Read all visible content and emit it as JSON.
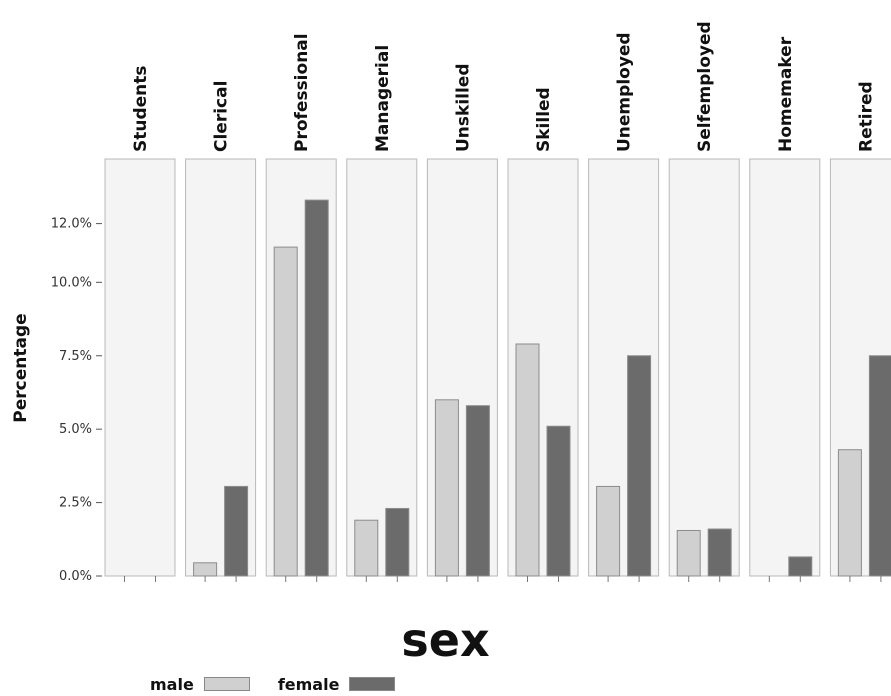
{
  "chart_data": {
    "type": "bar",
    "ylabel": "Percentage",
    "xlabel": "sex",
    "ylim": [
      0,
      14.2
    ],
    "yticks": [
      0,
      2.5,
      5.0,
      7.5,
      10.0,
      12.0
    ],
    "ytick_labels": [
      "0.0%",
      "2.5%",
      "5.0%",
      "7.5%",
      "10.0%",
      "12.0%"
    ],
    "panels": [
      "Students",
      "Clerical",
      "Professional",
      "Managerial",
      "Unskilled",
      "Skilled",
      "Unemployed",
      "Selfemployed",
      "Homemaker",
      "Retired"
    ],
    "series": [
      {
        "name": "male",
        "color": "#d0d0d0",
        "values": [
          0,
          0.45,
          11.2,
          1.9,
          6.0,
          7.9,
          3.05,
          1.55,
          0,
          4.3
        ]
      },
      {
        "name": "female",
        "color": "#6b6b6b",
        "values": [
          0,
          3.05,
          12.8,
          2.3,
          5.8,
          5.1,
          7.5,
          1.6,
          0.65,
          7.5
        ]
      }
    ],
    "grid": false,
    "legend_position": "bottom-left"
  },
  "colors": {
    "panel_background": "#f4f4f4",
    "panel_border": "#b8b8b8",
    "bar_border": "#8c8c8c"
  }
}
